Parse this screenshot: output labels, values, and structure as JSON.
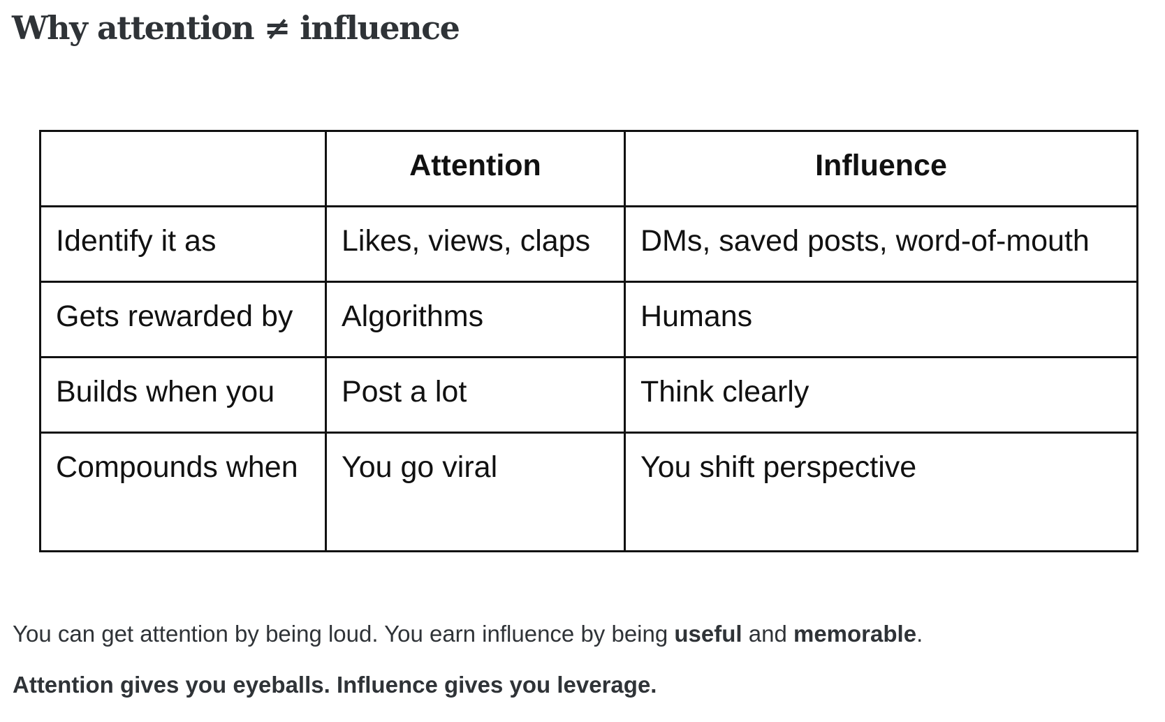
{
  "heading": "Why attention ≠ influence",
  "table": {
    "headers": [
      "",
      "Attention",
      "Influence"
    ],
    "rows": [
      [
        "Identify it as",
        "Likes, views, claps",
        "DMs, saved posts, word-of-mouth"
      ],
      [
        "Gets rewarded by",
        "Algorithms",
        "Humans"
      ],
      [
        "Builds when you",
        "Post a lot",
        "Think clearly"
      ],
      [
        "Compounds when",
        "You go viral",
        "You shift perspective"
      ]
    ]
  },
  "paragraph1": {
    "text_before": "You can get attention by being loud. You earn influence by being ",
    "bold_1": "useful",
    "text_middle": " and ",
    "bold_2": "memorable",
    "text_after": "."
  },
  "paragraph2": "Attention gives you eyeballs. Influence gives you leverage."
}
